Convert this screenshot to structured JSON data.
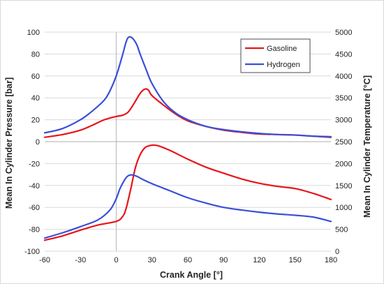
{
  "chart_data": {
    "type": "line",
    "xlabel": "Crank Angle [°]",
    "ylabel_left": "Mean In Cylinder Pressure [bar]",
    "ylabel_right": "Mean In Cylinder Temperature [°C]",
    "xlim": [
      -60,
      180
    ],
    "ylim_left": [
      -100,
      100
    ],
    "ylim_right": [
      0,
      5000
    ],
    "xticks": [
      -60,
      -30,
      0,
      30,
      60,
      90,
      120,
      150,
      180
    ],
    "yticks_left": [
      -100,
      -80,
      -60,
      -40,
      -20,
      0,
      20,
      40,
      60,
      80,
      100
    ],
    "yticks_right": [
      0,
      500,
      1000,
      1500,
      2000,
      2500,
      3000,
      3500,
      4000,
      4500,
      5000
    ],
    "grid": "horizontal",
    "legend_position": "top-right",
    "colors": {
      "Gasoline": "#e8141b",
      "Hydrogen": "#3a4fd8"
    },
    "legend": [
      "Gasoline",
      "Hydrogen"
    ],
    "series": [
      {
        "name": "Gasoline",
        "axis": "left",
        "quantity": "pressure",
        "x": [
          -60,
          -45,
          -30,
          -20,
          -10,
          0,
          5,
          10,
          15,
          20,
          24,
          27,
          30,
          40,
          50,
          60,
          75,
          90,
          105,
          120,
          135,
          150,
          165,
          180
        ],
        "y": [
          4,
          6.5,
          10.5,
          15,
          20,
          23,
          24,
          27,
          35,
          44,
          48,
          47,
          42,
          33,
          25,
          19,
          14,
          10.5,
          8.5,
          7,
          6.5,
          6,
          5,
          4
        ]
      },
      {
        "name": "Hydrogen",
        "axis": "left",
        "quantity": "pressure",
        "x": [
          -60,
          -45,
          -30,
          -20,
          -10,
          -5,
          0,
          5,
          8,
          10,
          13,
          17,
          20,
          25,
          30,
          40,
          50,
          60,
          75,
          90,
          105,
          120,
          135,
          150,
          165,
          180
        ],
        "y": [
          8,
          12,
          20,
          28,
          38,
          47,
          60,
          78,
          90,
          95,
          95,
          89,
          80,
          66,
          53,
          36,
          26,
          20,
          14,
          11,
          9,
          7.5,
          6.5,
          6,
          5,
          4.5
        ]
      },
      {
        "name": "Gasoline",
        "axis": "right",
        "quantity": "temperature",
        "x": [
          -60,
          -45,
          -30,
          -15,
          0,
          5,
          8,
          12,
          16,
          20,
          24,
          28,
          32,
          36,
          45,
          60,
          75,
          90,
          105,
          120,
          135,
          150,
          165,
          180
        ],
        "y": [
          250,
          350,
          480,
          600,
          680,
          780,
          950,
          1400,
          1900,
          2200,
          2360,
          2410,
          2420,
          2400,
          2300,
          2100,
          1920,
          1780,
          1650,
          1550,
          1480,
          1430,
          1320,
          1180
        ]
      },
      {
        "name": "Hydrogen",
        "axis": "right",
        "quantity": "temperature",
        "x": [
          -60,
          -45,
          -30,
          -15,
          -5,
          0,
          3,
          6,
          9,
          12,
          15,
          18,
          22,
          30,
          45,
          60,
          75,
          90,
          105,
          120,
          135,
          150,
          165,
          180
        ],
        "y": [
          300,
          420,
          560,
          720,
          950,
          1200,
          1420,
          1580,
          1700,
          1740,
          1730,
          1700,
          1640,
          1540,
          1380,
          1220,
          1100,
          1000,
          940,
          890,
          850,
          820,
          780,
          680
        ]
      }
    ]
  }
}
